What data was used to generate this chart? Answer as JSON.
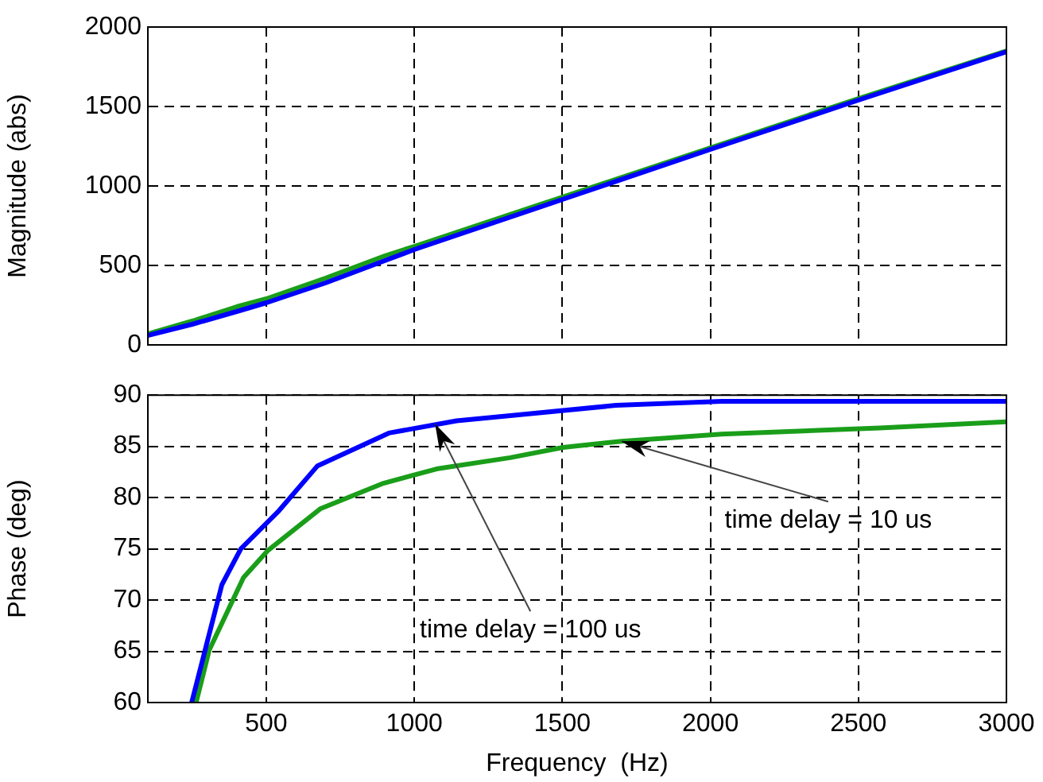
{
  "chart_data": [
    {
      "type": "line",
      "ylabel": "Magnitude (abs)",
      "xlim": [
        100,
        3000
      ],
      "xticks": [
        500,
        1000,
        1500,
        2000,
        2500,
        3000
      ],
      "ylim": [
        0,
        2000
      ],
      "yticks": [
        0,
        500,
        1000,
        1500,
        2000
      ],
      "grid": true,
      "legend": false,
      "tick_labels": "y",
      "line_style": "solid",
      "marker": "none",
      "series": [
        {
          "color": "#0000ff",
          "x": [
            100,
            250,
            400,
            500,
            700,
            900,
            1000,
            1500,
            2000,
            2500,
            3000
          ],
          "values": [
            60,
            130,
            210,
            265,
            390,
            530,
            600,
            915,
            1230,
            1540,
            1845
          ]
        },
        {
          "color": "#1a9e1a",
          "x": [
            100,
            250,
            400,
            500,
            700,
            900,
            1000,
            1500,
            2000,
            2500,
            3000
          ],
          "values": [
            70,
            150,
            240,
            290,
            420,
            560,
            620,
            930,
            1240,
            1550,
            1850
          ]
        }
      ]
    },
    {
      "type": "line",
      "xlabel": "Frequency  (Hz)",
      "ylabel": "Phase (deg)",
      "xlim": [
        100,
        3000
      ],
      "xticks": [
        500,
        1000,
        1500,
        2000,
        2500,
        3000
      ],
      "ylim": [
        60,
        90
      ],
      "yticks": [
        60,
        65,
        70,
        75,
        80,
        85,
        90
      ],
      "grid": true,
      "legend": false,
      "line_style": "solid",
      "marker": "none",
      "series": [
        {
          "color": "#0000ff",
          "x": [
            248,
            350,
            414,
            539,
            673,
            914,
            1143,
            1324,
            1681,
            2038,
            3000
          ],
          "values": [
            60,
            71.5,
            75,
            78.6,
            83.1,
            86.3,
            87.5,
            88,
            89,
            89.4,
            89.4
          ]
        },
        {
          "color": "#1a9e1a",
          "x": [
            263,
            307,
            423,
            504,
            682,
            896,
            1075,
            1324,
            1502,
            1700,
            2038,
            2573,
            3000
          ],
          "values": [
            60,
            65.1,
            72.2,
            74.8,
            78.9,
            81.4,
            82.8,
            83.9,
            84.9,
            85.5,
            86.2,
            86.8,
            87.4
          ]
        }
      ],
      "annotations": [
        {
          "text": "time delay = 100 us",
          "x": 1070,
          "y": 87.2
        },
        {
          "text": "time delay = 10 us",
          "x": 1700,
          "y": 85.5
        }
      ]
    }
  ]
}
